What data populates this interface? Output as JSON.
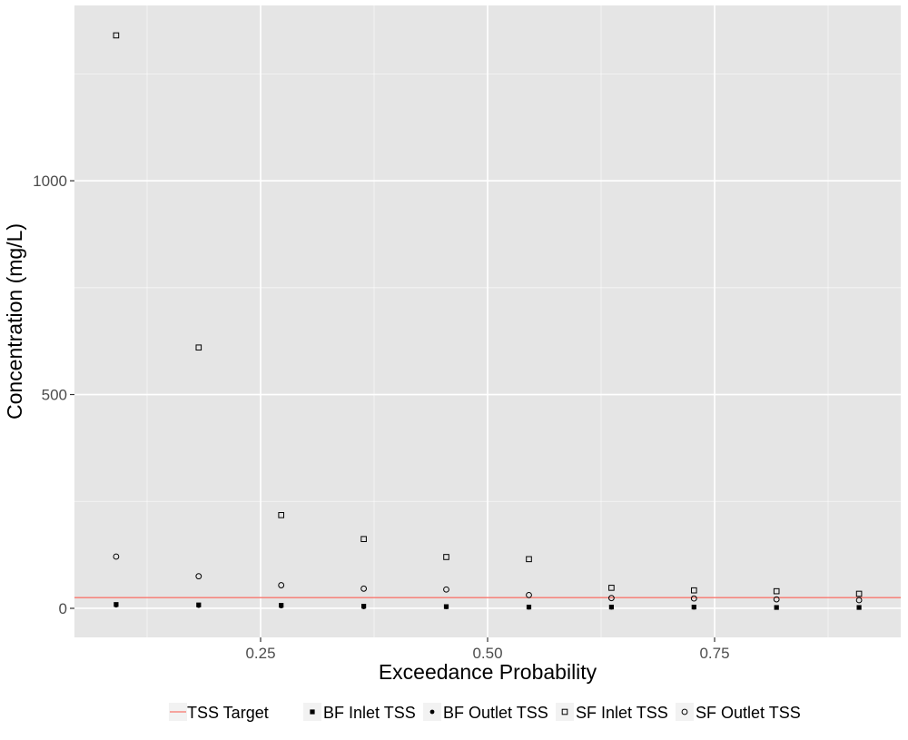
{
  "chart_data": {
    "type": "scatter",
    "title": "",
    "xlabel": "Exceedance Probability",
    "ylabel": "Concentration (mg/L)",
    "xlim": [
      0.045,
      0.955
    ],
    "ylim": [
      -68,
      1410
    ],
    "x_ticks": [
      {
        "value": 0.25,
        "label": "0.25"
      },
      {
        "value": 0.5,
        "label": "0.50"
      },
      {
        "value": 0.75,
        "label": "0.75"
      }
    ],
    "y_ticks": [
      {
        "value": 0,
        "label": "0"
      },
      {
        "value": 500,
        "label": "500"
      },
      {
        "value": 1000,
        "label": "1000"
      }
    ],
    "grid": true,
    "legend_position": "bottom",
    "reference_line": {
      "name": "TSS Target",
      "y": 25,
      "color": "#F8766D"
    },
    "x": [
      0.0909,
      0.1818,
      0.2727,
      0.3636,
      0.4545,
      0.5455,
      0.6364,
      0.7273,
      0.8182,
      0.9091
    ],
    "series": [
      {
        "name": "BF Inlet TSS",
        "marker": "filled-square",
        "values": [
          9,
          8,
          7,
          5,
          4,
          3,
          3,
          3,
          2,
          2
        ]
      },
      {
        "name": "BF Outlet TSS",
        "marker": "filled-circle",
        "values": [
          7,
          6,
          5,
          3,
          3,
          2,
          2,
          2,
          2,
          2
        ]
      },
      {
        "name": "SF Inlet TSS",
        "marker": "open-square",
        "values": [
          1340,
          610,
          218,
          162,
          120,
          115,
          48,
          42,
          40,
          34
        ]
      },
      {
        "name": "SF Outlet TSS",
        "marker": "open-circle",
        "values": [
          121,
          75,
          54,
          46,
          44,
          31,
          24,
          23,
          21,
          19
        ]
      }
    ]
  },
  "colors": {
    "panel_background": "#E5E5E5",
    "grid_major": "#FFFFFF",
    "target_line": "#F8766D",
    "points": "#000000",
    "axis_text": "#4D4D4D"
  }
}
